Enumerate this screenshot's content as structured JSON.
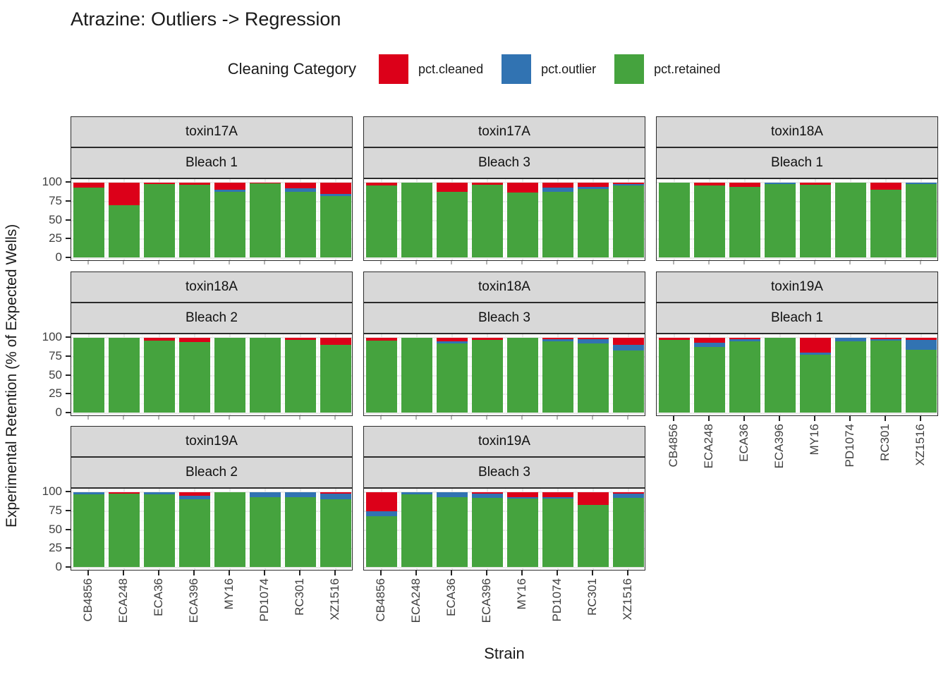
{
  "title": "Atrazine: Outliers -> Regression",
  "legend": {
    "title": "Cleaning Category",
    "items": [
      {
        "label": "pct.cleaned",
        "color": "#dc0019"
      },
      {
        "label": "pct.outlier",
        "color": "#3173b2"
      },
      {
        "label": "pct.retained",
        "color": "#45a33e"
      }
    ]
  },
  "axes": {
    "y_title": "Experimental Retention (% of Expected Wells)",
    "x_title": "Strain",
    "y_ticks": [
      "100",
      "75",
      "50",
      "25",
      "0"
    ]
  },
  "chart_data": {
    "type": "bar",
    "stacked": true,
    "ylim": [
      0,
      100
    ],
    "grid": true,
    "legend_position": "top",
    "categories": [
      "CB4856",
      "ECA248",
      "ECA36",
      "ECA396",
      "MY16",
      "PD1074",
      "RC301",
      "XZ1516"
    ],
    "series_order": [
      "pct.cleaned",
      "pct.outlier",
      "pct.retained"
    ],
    "colors": {
      "pct.cleaned": "#dc0019",
      "pct.outlier": "#3173b2",
      "pct.retained": "#45a33e"
    },
    "panels": [
      {
        "toxin": "toxin17A",
        "bleach": "Bleach 1",
        "row": 0,
        "col": 0,
        "show_x": false,
        "show_y": true,
        "values": {
          "pct.cleaned": [
            7,
            30,
            2,
            3,
            10,
            1,
            8,
            15
          ],
          "pct.outlier": [
            0,
            0,
            0,
            0,
            2,
            0,
            4,
            3
          ],
          "pct.retained": [
            93,
            70,
            98,
            97,
            88,
            99,
            88,
            82
          ]
        }
      },
      {
        "toxin": "toxin17A",
        "bleach": "Bleach 3",
        "row": 0,
        "col": 1,
        "show_x": false,
        "show_y": false,
        "values": {
          "pct.cleaned": [
            4,
            0,
            12,
            3,
            13,
            7,
            6,
            2
          ],
          "pct.outlier": [
            0,
            0,
            0,
            0,
            0,
            5,
            3,
            2
          ],
          "pct.retained": [
            96,
            100,
            88,
            97,
            87,
            88,
            91,
            96
          ]
        }
      },
      {
        "toxin": "toxin18A",
        "bleach": "Bleach 1",
        "row": 0,
        "col": 2,
        "show_x": false,
        "show_y": false,
        "values": {
          "pct.cleaned": [
            0,
            4,
            6,
            0,
            3,
            0,
            10,
            0
          ],
          "pct.outlier": [
            0,
            0,
            0,
            2,
            0,
            0,
            0,
            2
          ],
          "pct.retained": [
            100,
            96,
            94,
            98,
            97,
            100,
            90,
            98
          ]
        }
      },
      {
        "toxin": "toxin18A",
        "bleach": "Bleach 2",
        "row": 1,
        "col": 0,
        "show_x": false,
        "show_y": true,
        "values": {
          "pct.cleaned": [
            0,
            0,
            4,
            6,
            0,
            0,
            3,
            10
          ],
          "pct.outlier": [
            0,
            0,
            0,
            0,
            0,
            0,
            0,
            0
          ],
          "pct.retained": [
            100,
            100,
            96,
            94,
            100,
            100,
            97,
            90
          ]
        }
      },
      {
        "toxin": "toxin18A",
        "bleach": "Bleach 3",
        "row": 1,
        "col": 1,
        "show_x": false,
        "show_y": false,
        "values": {
          "pct.cleaned": [
            4,
            0,
            5,
            3,
            0,
            2,
            2,
            10
          ],
          "pct.outlier": [
            0,
            0,
            3,
            0,
            0,
            3,
            6,
            7
          ],
          "pct.retained": [
            96,
            100,
            92,
            97,
            100,
            95,
            92,
            83
          ]
        }
      },
      {
        "toxin": "toxin19A",
        "bleach": "Bleach 1",
        "row": 1,
        "col": 2,
        "show_x": true,
        "show_y": false,
        "values": {
          "pct.cleaned": [
            3,
            7,
            2,
            0,
            20,
            0,
            2,
            3
          ],
          "pct.outlier": [
            0,
            5,
            3,
            0,
            3,
            5,
            2,
            13
          ],
          "pct.retained": [
            97,
            88,
            95,
            100,
            77,
            95,
            96,
            84
          ]
        }
      },
      {
        "toxin": "toxin19A",
        "bleach": "Bleach 2",
        "row": 2,
        "col": 0,
        "show_x": true,
        "show_y": true,
        "values": {
          "pct.cleaned": [
            0,
            2,
            0,
            5,
            0,
            0,
            0,
            2
          ],
          "pct.outlier": [
            3,
            0,
            3,
            5,
            0,
            7,
            7,
            8
          ],
          "pct.retained": [
            97,
            98,
            97,
            90,
            100,
            93,
            93,
            90
          ]
        }
      },
      {
        "toxin": "toxin19A",
        "bleach": "Bleach 3",
        "row": 2,
        "col": 1,
        "show_x": true,
        "show_y": false,
        "values": {
          "pct.cleaned": [
            26,
            0,
            0,
            2,
            7,
            7,
            17,
            2
          ],
          "pct.outlier": [
            6,
            3,
            7,
            6,
            2,
            2,
            0,
            6
          ],
          "pct.retained": [
            68,
            97,
            93,
            92,
            91,
            91,
            83,
            92
          ]
        }
      }
    ]
  }
}
